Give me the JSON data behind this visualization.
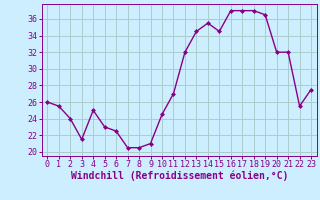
{
  "x": [
    0,
    1,
    2,
    3,
    4,
    5,
    6,
    7,
    8,
    9,
    10,
    11,
    12,
    13,
    14,
    15,
    16,
    17,
    18,
    19,
    20,
    21,
    22,
    23
  ],
  "y": [
    26,
    25.5,
    24,
    21.5,
    25,
    23,
    22.5,
    20.5,
    20.5,
    21,
    24.5,
    27,
    32,
    34.5,
    35.5,
    34.5,
    37,
    37,
    37,
    36.5,
    32,
    32,
    25.5,
    27.5
  ],
  "line_color": "#880088",
  "marker": "D",
  "marker_size": 2,
  "bg_color": "#cceeff",
  "grid_color": "#aacccc",
  "xlabel": "Windchill (Refroidissement éolien,°C)",
  "xlabel_fontsize": 7,
  "ylabel_ticks": [
    20,
    22,
    24,
    26,
    28,
    30,
    32,
    34,
    36
  ],
  "ylim": [
    19.5,
    37.8
  ],
  "xlim": [
    -0.5,
    23.5
  ],
  "xticks": [
    0,
    1,
    2,
    3,
    4,
    5,
    6,
    7,
    8,
    9,
    10,
    11,
    12,
    13,
    14,
    15,
    16,
    17,
    18,
    19,
    20,
    21,
    22,
    23
  ],
  "tick_fontsize": 6
}
